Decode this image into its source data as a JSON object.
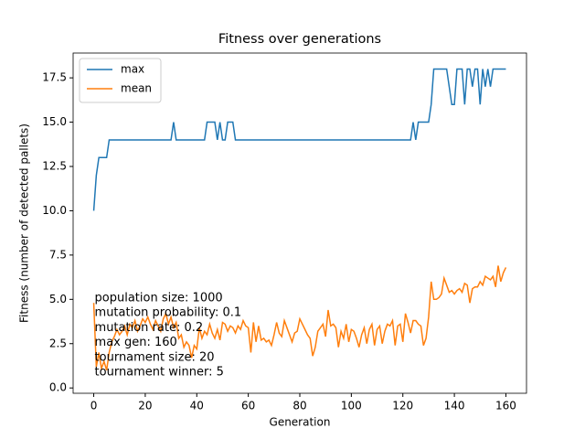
{
  "chart_data": {
    "type": "line",
    "title": "Fitness over generations",
    "xlabel": "Generation",
    "ylabel": "Fitness (number of detected pallets)",
    "x": [
      0,
      1,
      2,
      3,
      4,
      5,
      6,
      7,
      8,
      9,
      10,
      11,
      12,
      13,
      14,
      15,
      16,
      17,
      18,
      19,
      20,
      21,
      22,
      23,
      24,
      25,
      26,
      27,
      28,
      29,
      30,
      31,
      32,
      33,
      34,
      35,
      36,
      37,
      38,
      39,
      40,
      41,
      42,
      43,
      44,
      45,
      46,
      47,
      48,
      49,
      50,
      51,
      52,
      53,
      54,
      55,
      56,
      57,
      58,
      59,
      60,
      61,
      62,
      63,
      64,
      65,
      66,
      67,
      68,
      69,
      70,
      71,
      72,
      73,
      74,
      75,
      76,
      77,
      78,
      79,
      80,
      81,
      82,
      83,
      84,
      85,
      86,
      87,
      88,
      89,
      90,
      91,
      92,
      93,
      94,
      95,
      96,
      97,
      98,
      99,
      100,
      101,
      102,
      103,
      104,
      105,
      106,
      107,
      108,
      109,
      110,
      111,
      112,
      113,
      114,
      115,
      116,
      117,
      118,
      119,
      120,
      121,
      122,
      123,
      124,
      125,
      126,
      127,
      128,
      129,
      130,
      131,
      132,
      133,
      134,
      135,
      136,
      137,
      138,
      139,
      140,
      141,
      142,
      143,
      144,
      145,
      146,
      147,
      148,
      149,
      150,
      151,
      152,
      153,
      154,
      155,
      156,
      157,
      158,
      159,
      160
    ],
    "series": [
      {
        "name": "max",
        "color": "#1f77b4",
        "values": [
          10,
          12,
          13,
          13,
          13,
          13,
          14,
          14,
          14,
          14,
          14,
          14,
          14,
          14,
          14,
          14,
          14,
          14,
          14,
          14,
          14,
          14,
          14,
          14,
          14,
          14,
          14,
          14,
          14,
          14,
          14,
          15,
          14,
          14,
          14,
          14,
          14,
          14,
          14,
          14,
          14,
          14,
          14,
          14,
          15,
          15,
          15,
          15,
          14,
          15,
          14,
          14,
          15,
          15,
          15,
          14,
          14,
          14,
          14,
          14,
          14,
          14,
          14,
          14,
          14,
          14,
          14,
          14,
          14,
          14,
          14,
          14,
          14,
          14,
          14,
          14,
          14,
          14,
          14,
          14,
          14,
          14,
          14,
          14,
          14,
          14,
          14,
          14,
          14,
          14,
          14,
          14,
          14,
          14,
          14,
          14,
          14,
          14,
          14,
          14,
          14,
          14,
          14,
          14,
          14,
          14,
          14,
          14,
          14,
          14,
          14,
          14,
          14,
          14,
          14,
          14,
          14,
          14,
          14,
          14,
          14,
          14,
          14,
          14,
          15,
          14,
          15,
          15,
          15,
          15,
          15,
          16,
          18,
          18,
          18,
          18,
          18,
          18,
          17,
          16,
          16,
          18,
          18,
          18,
          16,
          18,
          18,
          17,
          18,
          18,
          16,
          18,
          17,
          18,
          17,
          18,
          18,
          18,
          18,
          18,
          18
        ]
      },
      {
        "name": "mean",
        "color": "#ff7f0e",
        "values": [
          4.8,
          1.2,
          2.0,
          1.1,
          1.5,
          1.0,
          2.0,
          2.6,
          2.9,
          3.3,
          3.0,
          3.2,
          3.5,
          3.0,
          3.6,
          3.4,
          3.8,
          3.2,
          3.5,
          3.9,
          3.7,
          4.0,
          3.6,
          3.3,
          3.8,
          3.5,
          3.2,
          3.9,
          4.2,
          3.6,
          4.0,
          3.4,
          3.7,
          2.8,
          3.0,
          2.3,
          2.6,
          2.4,
          1.7,
          2.4,
          2.2,
          3.4,
          2.8,
          3.2,
          3.0,
          3.6,
          3.1,
          2.8,
          3.3,
          2.7,
          3.7,
          3.6,
          3.2,
          3.5,
          3.4,
          3.1,
          3.5,
          3.3,
          3.8,
          3.5,
          3.4,
          2.0,
          3.7,
          2.6,
          3.5,
          2.7,
          2.8,
          2.6,
          2.7,
          2.4,
          3.0,
          3.7,
          3.1,
          2.9,
          3.8,
          3.4,
          3.0,
          2.6,
          3.1,
          3.2,
          3.9,
          3.6,
          3.3,
          3.0,
          2.8,
          1.8,
          2.3,
          3.2,
          3.4,
          3.6,
          2.9,
          4.4,
          3.5,
          3.6,
          3.4,
          2.3,
          3.2,
          2.8,
          3.6,
          2.6,
          3.3,
          3.2,
          2.8,
          2.3,
          3.0,
          3.4,
          2.5,
          3.3,
          3.6,
          2.4,
          3.3,
          3.5,
          2.5,
          3.2,
          3.6,
          3.5,
          3.8,
          2.4,
          3.5,
          3.6,
          2.6,
          4.2,
          3.7,
          3.1,
          3.8,
          3.8,
          3.6,
          3.5,
          2.4,
          2.8,
          4.0,
          6.0,
          5.0,
          5.0,
          5.1,
          5.3,
          6.2,
          5.8,
          5.4,
          5.5,
          5.3,
          5.5,
          5.6,
          5.4,
          5.9,
          5.8,
          4.8,
          5.6,
          5.7,
          5.7,
          6.0,
          5.8,
          6.3,
          6.2,
          6.1,
          6.3,
          5.7,
          6.9,
          6.0,
          6.5,
          6.8
        ]
      }
    ],
    "xlim": [
      -8,
      168
    ],
    "xticks": [
      0,
      20,
      40,
      60,
      80,
      100,
      120,
      140,
      160
    ],
    "ylim": [
      -0.3,
      18.9
    ],
    "yticks": [
      {
        "value": 0,
        "label": "0.0"
      },
      2.5,
      {
        "value": 5,
        "label": "5.0"
      },
      7.5,
      {
        "value": 10,
        "label": "10.0"
      },
      12.5,
      {
        "value": 15,
        "label": "15.0"
      },
      17.5
    ],
    "legend": "upper left",
    "annotations": [
      "population size: 1000",
      "mutation probability: 0.1",
      "mutation rate: 0.2",
      "max gen: 160",
      "tournament size: 20",
      "tournament winner: 5"
    ]
  }
}
